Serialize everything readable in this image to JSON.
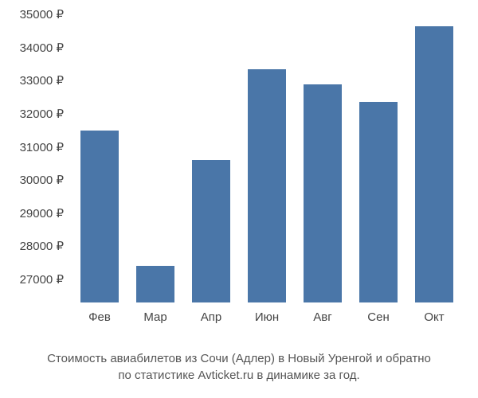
{
  "chart": {
    "type": "bar",
    "categories": [
      "Фев",
      "Мар",
      "Апр",
      "Июн",
      "Авг",
      "Сен",
      "Окт"
    ],
    "values": [
      31500,
      27400,
      30600,
      33350,
      32900,
      32350,
      34650
    ],
    "bar_color": "#4a76a8",
    "bar_width_ratio": 0.68,
    "ylim": [
      26300,
      35200
    ],
    "y_ticks": [
      27000,
      28000,
      29000,
      30000,
      31000,
      32000,
      33000,
      34000,
      35000
    ],
    "y_tick_suffix": " ₽",
    "background_color": "#ffffff",
    "axis_text_color": "#444444",
    "axis_fontsize": 15
  },
  "caption": {
    "line1": "Стоимость авиабилетов из Сочи (Адлер) в Новый Уренгой и обратно",
    "line2": "по статистике Avticket.ru в динамике за год.",
    "color": "#555555",
    "fontsize": 15
  }
}
